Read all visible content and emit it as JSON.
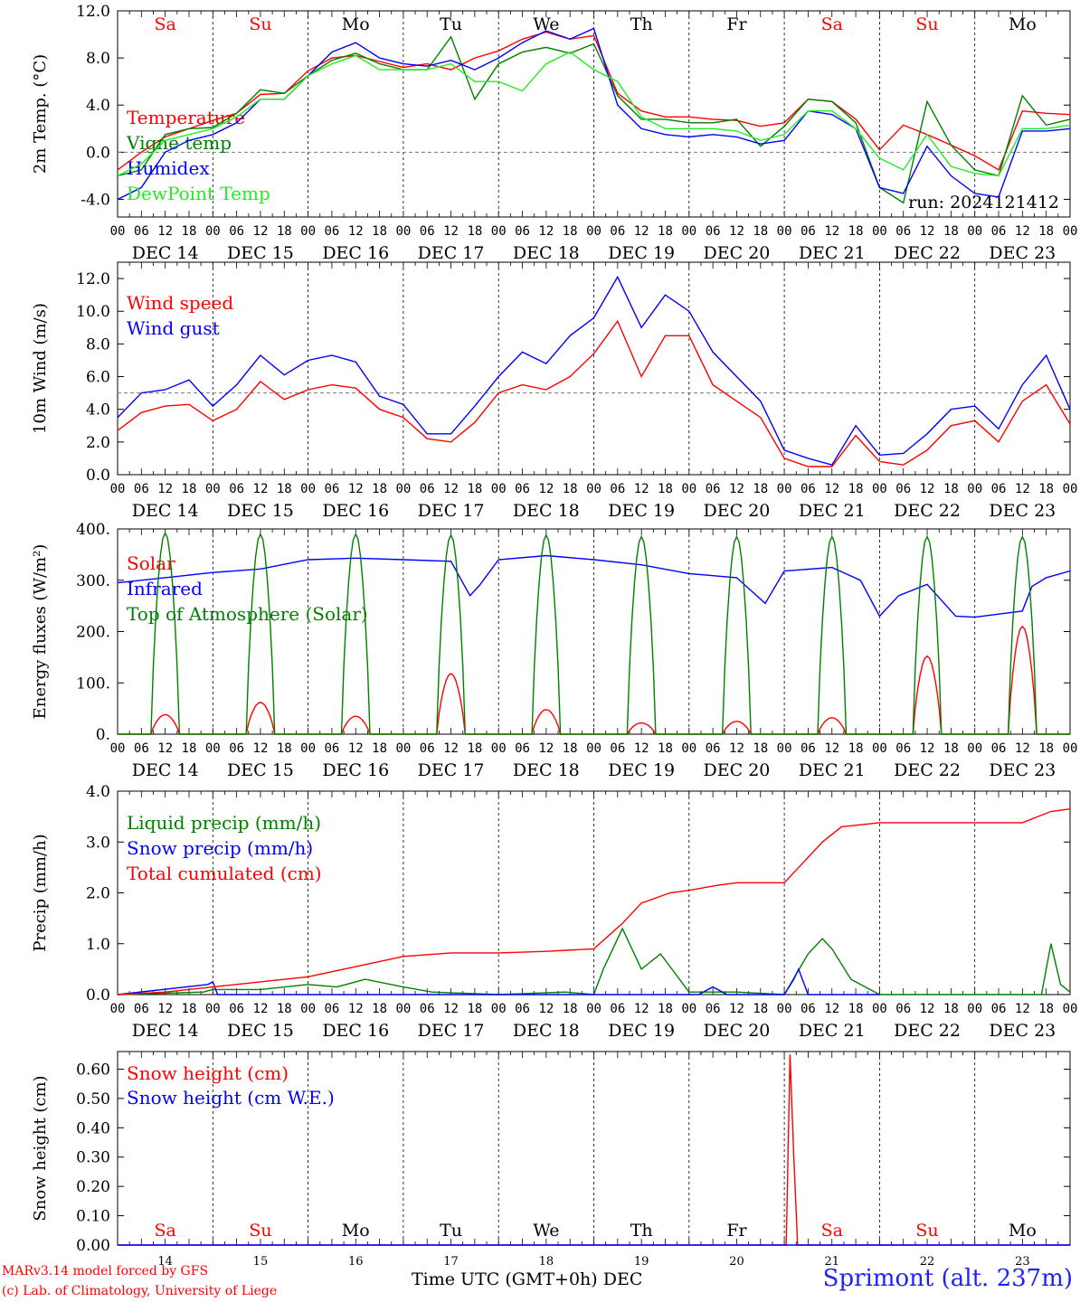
{
  "colors": {
    "red": "#ff0000",
    "darkgreen": "#008000",
    "blue": "#0000ff",
    "lightgreen": "#22ee22",
    "grid": "#000000"
  },
  "x_axis": {
    "hour_ticks": [
      "00",
      "06",
      "12",
      "18"
    ],
    "final_tick": "00",
    "date_labels": [
      "DEC 14",
      "DEC 15",
      "DEC 16",
      "DEC 17",
      "DEC 18",
      "DEC 19",
      "DEC 20",
      "DEC 21",
      "DEC 22",
      "DEC 23"
    ],
    "days": [
      {
        "label": "Sa",
        "color": "#ff0000"
      },
      {
        "label": "Su",
        "color": "#ff0000"
      },
      {
        "label": "Mo",
        "color": "#000000"
      },
      {
        "label": "Tu",
        "color": "#000000"
      },
      {
        "label": "We",
        "color": "#000000"
      },
      {
        "label": "Th",
        "color": "#000000"
      },
      {
        "label": "Fr",
        "color": "#000000"
      },
      {
        "label": "Sa",
        "color": "#ff0000"
      },
      {
        "label": "Su",
        "color": "#ff0000"
      },
      {
        "label": "Mo",
        "color": "#000000"
      }
    ],
    "day_numbers": [
      "14",
      "15",
      "16",
      "17",
      "18",
      "19",
      "20",
      "21",
      "22",
      "23"
    ]
  },
  "footer": {
    "model": "MARv3.14 model forced by GFS",
    "credit": "(c) Lab. of Climatology, University of Liege",
    "axis_title": "Time UTC (GMT+0h) DEC",
    "station": "Sprimont (alt. 237m)"
  },
  "chart_data": [
    {
      "type": "line",
      "ylabel": "2m Temp. (°C)",
      "ylim": [
        -5.5,
        12.0
      ],
      "yticks": [
        -4.0,
        0.0,
        4.0,
        8.0,
        12.0
      ],
      "ytick_labels": [
        "-4.0",
        "0.0",
        "4.0",
        "8.0",
        "12.0"
      ],
      "ref_line": 0.0,
      "annotation": "run: 2024121412",
      "show_day_names": true,
      "x_end_days": 10,
      "series": [
        {
          "name": "Temperature",
          "color": "#ff0000",
          "x_days": [
            0,
            0.25,
            0.5,
            0.75,
            1,
            1.25,
            1.5,
            1.75,
            2,
            2.25,
            2.5,
            2.75,
            3,
            3.25,
            3.5,
            3.75,
            4,
            4.25,
            4.5,
            4.75,
            5,
            5.25,
            5.5,
            5.75,
            6,
            6.25,
            6.5,
            6.75,
            7,
            7.25,
            7.5,
            7.75,
            8,
            8.25,
            8.5,
            8.75,
            9,
            9.25,
            9.5,
            9.75,
            10
          ],
          "y": [
            -1.5,
            0,
            1.3,
            2,
            2.7,
            3.3,
            4.9,
            5,
            6.9,
            8,
            8.2,
            7.7,
            7.2,
            7.5,
            7.0,
            8.0,
            8.6,
            9.6,
            10.2,
            9.6,
            9.9,
            5,
            3.5,
            3,
            3,
            2.8,
            2.7,
            2.2,
            2.5,
            4.5,
            4.3,
            2.8,
            0.2,
            2.3,
            1.5,
            0.6,
            -0.3,
            -1.5,
            3.5,
            3.3,
            3.2
          ]
        },
        {
          "name": "Vigne temp",
          "color": "#008000",
          "x_days": [
            0,
            0.25,
            0.5,
            0.75,
            1,
            1.25,
            1.5,
            1.75,
            2,
            2.25,
            2.5,
            2.75,
            3,
            3.25,
            3.5,
            3.75,
            4,
            4.25,
            4.5,
            4.75,
            5,
            5.25,
            5.5,
            5.75,
            6,
            6.25,
            6.5,
            6.75,
            7,
            7.25,
            7.5,
            7.75,
            8,
            8.25,
            8.5,
            8.75,
            9,
            9.25,
            9.5,
            9.75,
            10
          ],
          "y": [
            -2,
            -1.5,
            1.5,
            2,
            2.1,
            3.3,
            5.3,
            5,
            6.5,
            7.8,
            8.4,
            7.5,
            7,
            7.0,
            9.8,
            4.5,
            7.5,
            8.5,
            8.9,
            8.4,
            9.2,
            4.8,
            2.8,
            2.8,
            2.5,
            2.5,
            2.8,
            0.5,
            2.2,
            4.5,
            4.3,
            2.5,
            -3,
            -4.3,
            4.3,
            0.6,
            -1.5,
            -2,
            4.8,
            2.3,
            2.8
          ]
        },
        {
          "name": "Humidex",
          "color": "#0000ff",
          "x_days": [
            0,
            0.25,
            0.5,
            0.75,
            1,
            1.25,
            1.5,
            1.75,
            2,
            2.25,
            2.5,
            2.75,
            3,
            3.25,
            3.5,
            3.75,
            4,
            4.25,
            4.5,
            4.75,
            5,
            5.25,
            5.5,
            5.75,
            6,
            6.25,
            6.5,
            6.75,
            7,
            7.25,
            7.5,
            7.75,
            8,
            8.25,
            8.5,
            8.75,
            9,
            9.25,
            9.5,
            9.75,
            10
          ],
          "y": [
            -4,
            -3,
            0,
            1,
            1.5,
            2.5,
            4.5,
            4.5,
            6.5,
            8.5,
            9.3,
            8.0,
            7.5,
            7.3,
            7.8,
            7,
            8,
            9.3,
            10.3,
            9.6,
            10.5,
            4,
            2,
            1.5,
            1.3,
            1.5,
            1.3,
            0.7,
            1,
            3.5,
            3.2,
            2,
            -3,
            -3.5,
            0.5,
            -2,
            -3.5,
            -3.8,
            1.8,
            1.8,
            2
          ]
        },
        {
          "name": "DewPoint Temp",
          "color": "#22ee22",
          "x_days": [
            0,
            0.25,
            0.5,
            0.75,
            1,
            1.25,
            1.5,
            1.75,
            2,
            2.25,
            2.5,
            2.75,
            3,
            3.25,
            3.5,
            3.75,
            4,
            4.25,
            4.5,
            4.75,
            5,
            5.25,
            5.5,
            5.75,
            6,
            6.25,
            6.5,
            6.75,
            7,
            7.25,
            7.5,
            7.75,
            8,
            8.25,
            8.5,
            8.75,
            9,
            9.25,
            9.5,
            9.75,
            10
          ],
          "y": [
            -2,
            -1,
            1,
            1.5,
            2,
            3,
            4.5,
            4.5,
            6.5,
            7.5,
            8.2,
            7.0,
            7,
            7,
            7.5,
            6,
            6,
            5.2,
            7.5,
            8.5,
            7,
            6,
            3,
            2,
            2,
            2,
            1.8,
            1,
            1.5,
            3.5,
            3.5,
            2,
            -0.5,
            -1.5,
            1.5,
            -1.2,
            -1.8,
            -2,
            2,
            2,
            2.3
          ]
        }
      ]
    },
    {
      "type": "line",
      "ylabel": "10m Wind (m/s)",
      "ylim": [
        0,
        13
      ],
      "yticks": [
        0,
        2,
        4,
        6,
        8,
        10,
        12
      ],
      "ytick_labels": [
        "0.0",
        "2.0",
        "4.0",
        "6.0",
        "8.0",
        "10.0",
        "12.0"
      ],
      "ref_line": 5.0,
      "show_day_names": false,
      "x_end_days": 10,
      "series": [
        {
          "name": "Wind speed",
          "color": "#ff0000",
          "x_days": [
            0,
            0.25,
            0.5,
            0.75,
            1,
            1.25,
            1.5,
            1.75,
            2,
            2.25,
            2.5,
            2.75,
            3,
            3.25,
            3.5,
            3.75,
            4,
            4.25,
            4.5,
            4.75,
            5,
            5.25,
            5.5,
            5.75,
            6,
            6.25,
            6.5,
            6.75,
            7,
            7.25,
            7.5,
            7.75,
            8,
            8.25,
            8.5,
            8.75,
            9,
            9.25,
            9.5,
            9.75,
            10
          ],
          "y": [
            2.7,
            3.8,
            4.2,
            4.3,
            3.3,
            4,
            5.7,
            4.6,
            5.2,
            5.5,
            5.3,
            4,
            3.5,
            2.2,
            2,
            3.2,
            5,
            5.5,
            5.2,
            6,
            7.4,
            9.4,
            6,
            8.5,
            8.5,
            5.5,
            4.5,
            3.5,
            1,
            0.5,
            0.5,
            2.4,
            0.8,
            0.6,
            1.5,
            3,
            3.3,
            2,
            4.5,
            5.5,
            3.1
          ]
        },
        {
          "name": "Wind gust",
          "color": "#0000ff",
          "x_days": [
            0,
            0.25,
            0.5,
            0.75,
            1,
            1.25,
            1.5,
            1.75,
            2,
            2.25,
            2.5,
            2.75,
            3,
            3.25,
            3.5,
            3.75,
            4,
            4.25,
            4.5,
            4.75,
            5,
            5.25,
            5.5,
            5.75,
            6,
            6.25,
            6.5,
            6.75,
            7,
            7.25,
            7.5,
            7.75,
            8,
            8.25,
            8.5,
            8.75,
            9,
            9.25,
            9.5,
            9.75,
            10
          ],
          "y": [
            3.5,
            5,
            5.2,
            5.8,
            4.2,
            5.5,
            7.3,
            6.1,
            7,
            7.3,
            6.9,
            4.8,
            4.3,
            2.5,
            2.5,
            4.2,
            6,
            7.5,
            6.8,
            8.5,
            9.6,
            12.1,
            9,
            11,
            10,
            7.5,
            6,
            4.5,
            1.5,
            1,
            0.6,
            3,
            1.2,
            1.3,
            2.5,
            4,
            4.2,
            2.8,
            5.5,
            7.3,
            4
          ]
        }
      ]
    },
    {
      "type": "line",
      "ylabel": "Energy fluxes (W/m²)",
      "ylim": [
        0,
        400
      ],
      "yticks": [
        0,
        100,
        200,
        300,
        400
      ],
      "ytick_labels": [
        "0.",
        "100.",
        "200.",
        "300.",
        "400."
      ],
      "show_day_names": false,
      "x_end_days": 10,
      "series": [
        {
          "name": "Solar",
          "color": "#ff0000",
          "diurnal_peaks": [
            38,
            62,
            35,
            118,
            48,
            22,
            25,
            32,
            152,
            210
          ]
        },
        {
          "name": "Infrared",
          "color": "#0000ff",
          "x_days": [
            0,
            0.5,
            1,
            1.5,
            2,
            2.5,
            3,
            3.5,
            3.7,
            3.8,
            4,
            4.5,
            5,
            5.5,
            6,
            6.5,
            6.8,
            7,
            7.5,
            7.8,
            8,
            8.2,
            8.5,
            8.8,
            9,
            9.5,
            9.6,
            9.75,
            10
          ],
          "y": [
            295,
            305,
            315,
            322,
            340,
            343,
            340,
            337,
            270,
            290,
            340,
            348,
            340,
            330,
            313,
            305,
            255,
            318,
            325,
            300,
            230,
            270,
            292,
            230,
            228,
            240,
            288,
            305,
            318
          ]
        },
        {
          "name": "Top of Atmosphere (Solar)",
          "color": "#008000",
          "diurnal_peaks": [
            392,
            390,
            390,
            388,
            388,
            385,
            385,
            385,
            385,
            385
          ]
        }
      ]
    },
    {
      "type": "line",
      "ylabel": "Precip (mm/h)",
      "ylim": [
        0,
        4.0
      ],
      "yticks": [
        0,
        1,
        2,
        3,
        4
      ],
      "ytick_labels": [
        "0.0",
        "1.0",
        "2.0",
        "3.0",
        "4.0"
      ],
      "show_day_names": false,
      "x_end_days": 10,
      "series": [
        {
          "name": "Liquid precip (mm/h)",
          "color": "#008000",
          "x_days": [
            0,
            0.9,
            1,
            1.5,
            2,
            2.3,
            2.6,
            3,
            3.3,
            4,
            4.7,
            5,
            5.1,
            5.3,
            5.5,
            5.7,
            6,
            6.5,
            7,
            7.25,
            7.4,
            7.5,
            7.7,
            8,
            9,
            9.7,
            9.8,
            9.9,
            10
          ],
          "y": [
            0,
            0.05,
            0.1,
            0.1,
            0.2,
            0.15,
            0.3,
            0.15,
            0.05,
            0,
            0.05,
            0,
            0.5,
            1.3,
            0.5,
            0.8,
            0.05,
            0.05,
            0,
            0.8,
            1.1,
            0.9,
            0.3,
            0,
            0,
            0,
            1,
            0.2,
            0.05
          ]
        },
        {
          "name": "Snow precip (mm/h)",
          "color": "#0000ff",
          "x_days": [
            0,
            0.95,
            1,
            1.05,
            6.1,
            6.25,
            6.4,
            7,
            7.1,
            7.15,
            7.25,
            8
          ],
          "y": [
            0,
            0.2,
            0.25,
            0,
            0,
            0.15,
            0,
            0,
            0.3,
            0.5,
            0,
            0
          ]
        },
        {
          "name": "Total cumulated (cm)",
          "color": "#ff0000",
          "x_days": [
            0,
            0.5,
            1,
            1.5,
            2,
            2.5,
            3,
            3.5,
            4,
            4.5,
            5,
            5.3,
            5.5,
            5.8,
            6,
            6.3,
            6.5,
            7,
            7.2,
            7.4,
            7.6,
            8,
            8.5,
            9,
            9.5,
            9.8,
            10
          ],
          "y": [
            0,
            0.05,
            0.15,
            0.25,
            0.35,
            0.55,
            0.75,
            0.82,
            0.82,
            0.85,
            0.9,
            1.4,
            1.8,
            2,
            2.05,
            2.15,
            2.2,
            2.2,
            2.6,
            3.0,
            3.3,
            3.38,
            3.38,
            3.38,
            3.38,
            3.6,
            3.65
          ]
        }
      ]
    },
    {
      "type": "line",
      "ylabel": "Snow height (cm)",
      "ylim": [
        0,
        0.66
      ],
      "yticks": [
        0,
        0.1,
        0.2,
        0.3,
        0.4,
        0.5,
        0.6
      ],
      "ytick_labels": [
        "0.00",
        "0.10",
        "0.20",
        "0.30",
        "0.40",
        "0.50",
        "0.60"
      ],
      "show_day_names": true,
      "bottom_day_names": true,
      "x_end_days": 10,
      "series": [
        {
          "name": "Snow height (cm)",
          "color": "#ff0000",
          "x_days": [
            0,
            7.02,
            7.06,
            7.1,
            7.14,
            10
          ],
          "y": [
            0,
            0,
            0.65,
            0.3,
            0,
            0
          ]
        },
        {
          "name": "Snow height (cm W.E.)",
          "color": "#0000ff",
          "x_days": [
            0,
            10
          ],
          "y": [
            0,
            0
          ]
        }
      ]
    }
  ]
}
